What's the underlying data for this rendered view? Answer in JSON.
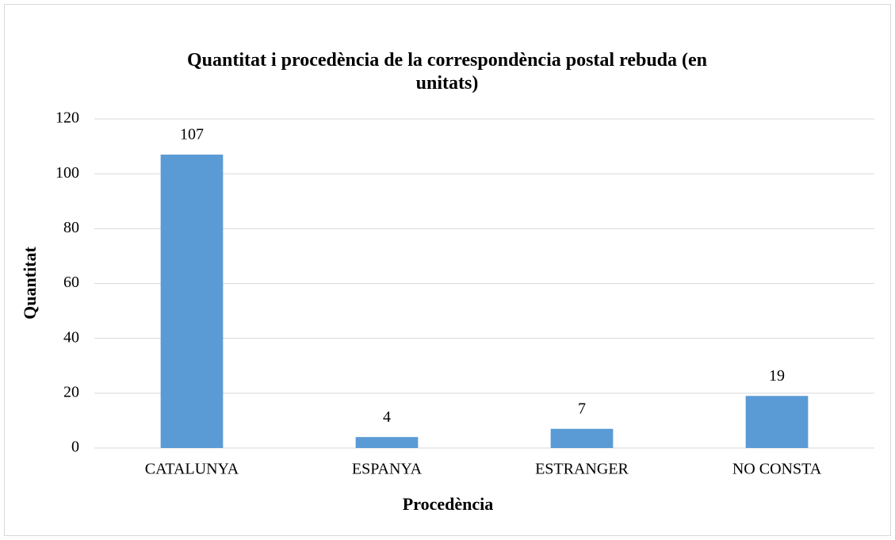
{
  "chart_data": {
    "type": "bar",
    "title": "Quantitat i procedència de la correspondència postal rebuda (en unitats)",
    "x_label": "Procedència",
    "y_label": "Quantitat",
    "categories": [
      "CATALUNYA",
      "ESPANYA",
      "ESTRANGER",
      "NO CONSTA"
    ],
    "values": [
      107,
      4,
      7,
      19
    ],
    "color": "#5b9bd5",
    "ylim": [
      0,
      120
    ],
    "yticks": [
      0,
      20,
      40,
      60,
      80,
      100,
      120
    ],
    "grid": true
  }
}
